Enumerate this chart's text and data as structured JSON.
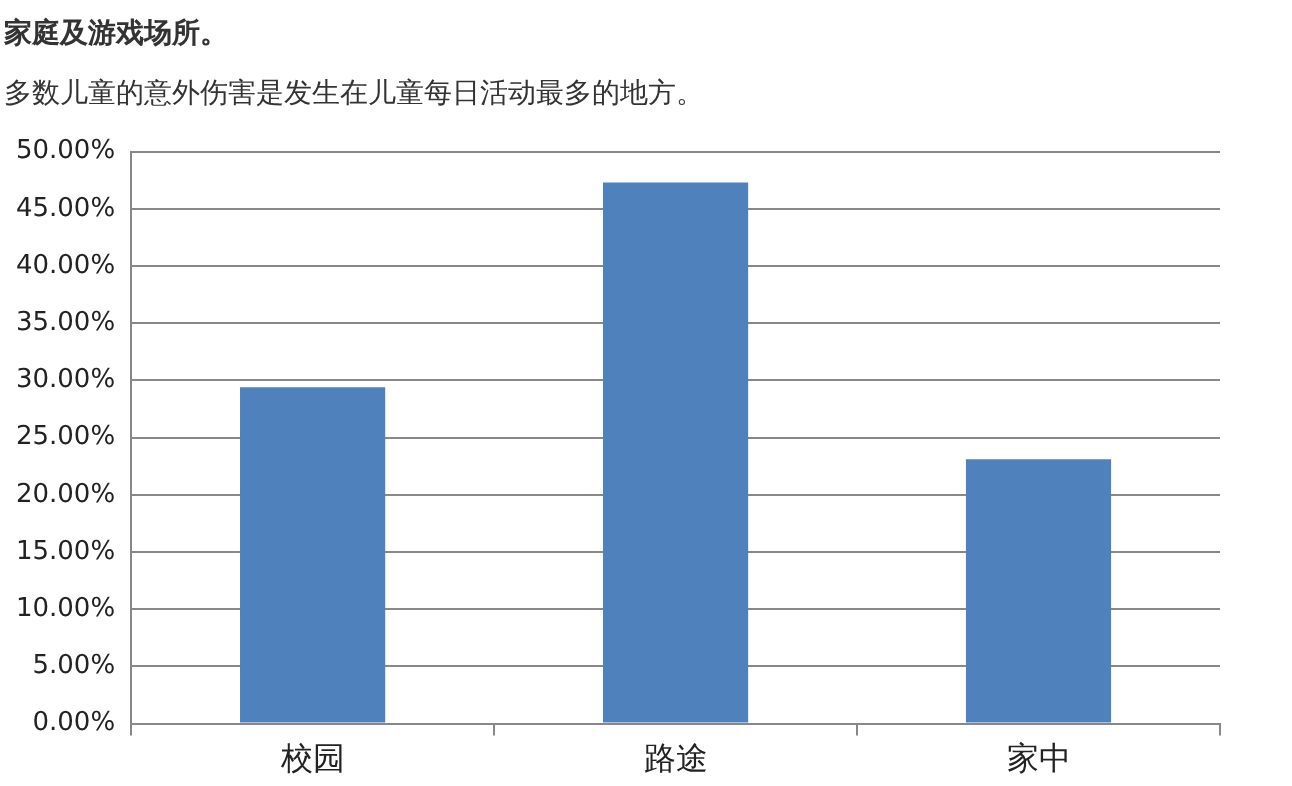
{
  "chart_data": {
    "type": "bar",
    "title": "家庭及游戏场所。",
    "subtitle": "多数儿童的意外伤害是发生在儿童每日活动最多的地方。",
    "categories": [
      "校园",
      "路途",
      "家中"
    ],
    "values": [
      29.4,
      47.3,
      23.1
    ],
    "color": "#4f81bd",
    "ylim": [
      0,
      50
    ],
    "yticks": [
      {
        "value": 0,
        "label": "0.00%"
      },
      {
        "value": 5,
        "label": "5.00%"
      },
      {
        "value": 10,
        "label": "10.00%"
      },
      {
        "value": 15,
        "label": "15.00%"
      },
      {
        "value": 20,
        "label": "20.00%"
      },
      {
        "value": 25,
        "label": "25.00%"
      },
      {
        "value": 30,
        "label": "30.00%"
      },
      {
        "value": 35,
        "label": "35.00%"
      },
      {
        "value": 40,
        "label": "40.00%"
      },
      {
        "value": 45,
        "label": "45.00%"
      },
      {
        "value": 50,
        "label": "50.00%"
      }
    ],
    "grid": "y",
    "legend": false
  }
}
